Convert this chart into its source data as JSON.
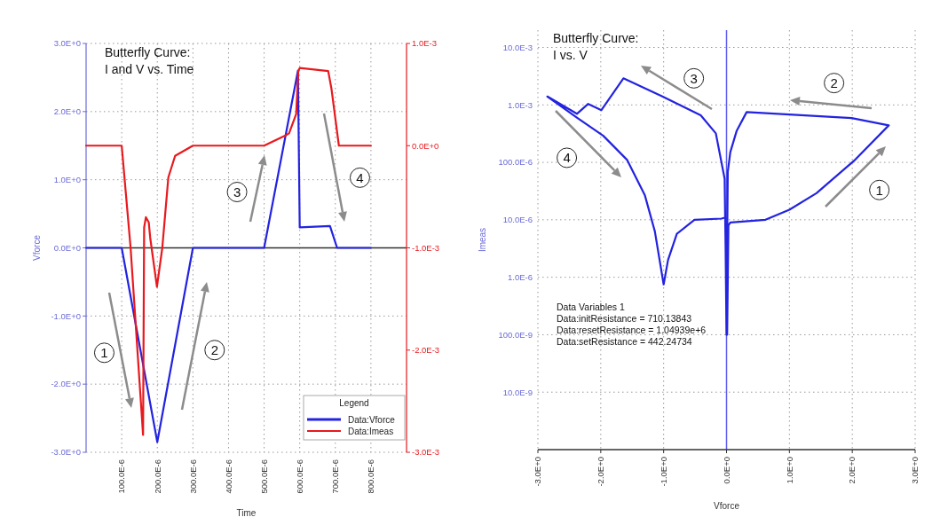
{
  "chart_data": [
    {
      "type": "line",
      "title": "Butterfly Curve:\nI and V vs. Time",
      "xlabel": "Time",
      "ylabel": "Vforce",
      "xlim": [
        0,
        0.0009
      ],
      "xticks": [
        {
          "value": 0.0001,
          "label": "100.0E-6"
        },
        {
          "value": 0.0002,
          "label": "200.0E-6"
        },
        {
          "value": 0.0003,
          "label": "300.0E-6"
        },
        {
          "value": 0.0004,
          "label": "400.0E-6"
        },
        {
          "value": 0.0005,
          "label": "500.0E-6"
        },
        {
          "value": 0.0006,
          "label": "600.0E-6"
        },
        {
          "value": 0.0007,
          "label": "700.0E-6"
        },
        {
          "value": 0.0008,
          "label": "800.0E-6"
        }
      ],
      "ylim": [
        -3,
        3
      ],
      "yticks": [
        {
          "value": 3,
          "label": "3.0E+0"
        },
        {
          "value": 2,
          "label": "2.0E+0"
        },
        {
          "value": 1,
          "label": "1.0E+0"
        },
        {
          "value": 0,
          "label": "0.0E+0"
        },
        {
          "value": -1,
          "label": "-1.0E+0"
        },
        {
          "value": -2,
          "label": "-2.0E+0"
        },
        {
          "value": -3,
          "label": "-3.0E+0"
        }
      ],
      "y2lim": [
        -0.003,
        0.001
      ],
      "y2ticks": [
        {
          "value": 0.001,
          "label": "1.0E-3"
        },
        {
          "value": 0,
          "label": "0.0E+0"
        },
        {
          "value": -0.001,
          "label": "-1.0E-3"
        },
        {
          "value": -0.002,
          "label": "-2.0E-3"
        },
        {
          "value": -0.003,
          "label": "-3.0E-3"
        }
      ],
      "series": [
        {
          "name": "Data:Vforce",
          "color": "#2323e0",
          "x": [
            0,
            0.0001,
            0.0002,
            0.0003,
            0.0005,
            0.000595,
            0.0006,
            0.000685,
            0.000705,
            0.0008
          ],
          "values": [
            0,
            0,
            -2.85,
            0,
            0,
            2.6,
            0.3,
            0.32,
            0,
            0
          ]
        },
        {
          "name": "Data:Imeas",
          "color": "#e8191e",
          "axis": "y2",
          "x": [
            0,
            0.0001,
            0.000125,
            0.00016,
            0.000163,
            0.000168,
            0.000176,
            0.00018,
            0.000199,
            0.000214,
            0.000231,
            0.00025,
            0.0003,
            0.0005,
            0.00056,
            0.00057,
            0.00059,
            0.000596,
            0.0006,
            0.00068,
            0.000689,
            0.00071,
            0.0008
          ],
          "values": [
            0,
            0,
            -0.001,
            -0.00283,
            -0.0008,
            -0.0007,
            -0.00075,
            -0.0009,
            -0.00138,
            -0.001,
            -0.00031,
            -0.0001,
            0,
            0,
            0.0001,
            0.00012,
            0.00031,
            0.00073,
            0.00076,
            0.00073,
            0.00056,
            0,
            0
          ]
        }
      ],
      "legend": "bottom right",
      "legend_title": "Legend",
      "grid": true,
      "ref_lines": [
        {
          "axis": "y",
          "value": 0,
          "color": "#333333"
        }
      ],
      "annotations": [
        {
          "text": "1",
          "x": 5.1e-05,
          "y": -1.54
        },
        {
          "text": "2",
          "x": 0.000361,
          "y": -1.5
        },
        {
          "text": "3",
          "x": 0.000424,
          "y": 0.82
        },
        {
          "text": "4",
          "x": 0.000769,
          "y": 1.03
        }
      ]
    },
    {
      "type": "line",
      "title": "Butterfly Curve:\nI vs. V",
      "xlabel": "Vforce",
      "ylabel": "Imeas",
      "xlim": [
        -3,
        3
      ],
      "xticks": [
        {
          "value": -3,
          "label": "-3.0E+0"
        },
        {
          "value": -2,
          "label": "-2.0E+0"
        },
        {
          "value": -1,
          "label": "-1.0E+0"
        },
        {
          "value": 0,
          "label": "0.0E+0"
        },
        {
          "value": 1,
          "label": "1.0E+0"
        },
        {
          "value": 2,
          "label": "2.0E+0"
        },
        {
          "value": 3,
          "label": "3.0E+0"
        }
      ],
      "ylim": [
        1e-09,
        0.02
      ],
      "log": "y",
      "yticks": [
        {
          "value": 0.01,
          "label": "10.0E-3"
        },
        {
          "value": 0.001,
          "label": "1.0E-3"
        },
        {
          "value": 0.0001,
          "label": "100.0E-6"
        },
        {
          "value": 1e-05,
          "label": "10.0E-6"
        },
        {
          "value": 1e-06,
          "label": "1.0E-6"
        },
        {
          "value": 1e-07,
          "label": "100.0E-9"
        },
        {
          "value": 1e-08,
          "label": "10.0E-9"
        }
      ],
      "series": [
        {
          "color": "#2323e0",
          "x": [
            0.01,
            0.03,
            0.06,
            0.62,
            1.0,
            1.43,
            2.03,
            2.58,
            1.99,
            0.32,
            0.16,
            0.06,
            0.02,
            0.0,
            -0.03,
            -0.17,
            -0.41,
            -1.02,
            -1.64,
            -1.99,
            -2.2,
            -2.38,
            -2.85,
            -2.38,
            -1.96,
            -1.58,
            -1.3,
            -1.14,
            -1.0,
            -0.93,
            -0.79,
            -0.51,
            -0.08,
            -0.02,
            0.0
          ],
          "values": [
            1e-07,
            8e-06,
            9e-06,
            1e-05,
            1.5e-05,
            2.9e-05,
            0.000107,
            0.00044,
            0.00059,
            0.00075,
            0.00035,
            0.00015,
            6.8e-05,
            2e-07,
            5.2e-05,
            0.00032,
            0.00066,
            0.0014,
            0.0029,
            0.00081,
            0.00104,
            0.0007,
            0.0014,
            0.0006,
            0.00029,
            0.00011,
            2.7e-05,
            6.3e-06,
            7.5e-07,
            2e-06,
            5.7e-06,
            1e-05,
            1.05e-05,
            1.1e-05,
            1e-07
          ]
        }
      ],
      "grid": true,
      "ref_lines": [
        {
          "axis": "x",
          "value": 0,
          "color": "#5c5cf0"
        }
      ],
      "annotations": [
        {
          "text": "1",
          "x": 2.43,
          "y": 3.3e-05
        },
        {
          "text": "2",
          "x": 1.71,
          "y": 0.0024
        },
        {
          "text": "3",
          "x": -0.52,
          "y": 0.0029
        },
        {
          "text": "4",
          "x": -2.54,
          "y": 0.00012
        },
        "Data Variables 1",
        "Data:initResistance = 710.13843",
        "Data:resetResistance = 1.04939e+6",
        "Data:setResistance = 442.24734"
      ]
    }
  ]
}
